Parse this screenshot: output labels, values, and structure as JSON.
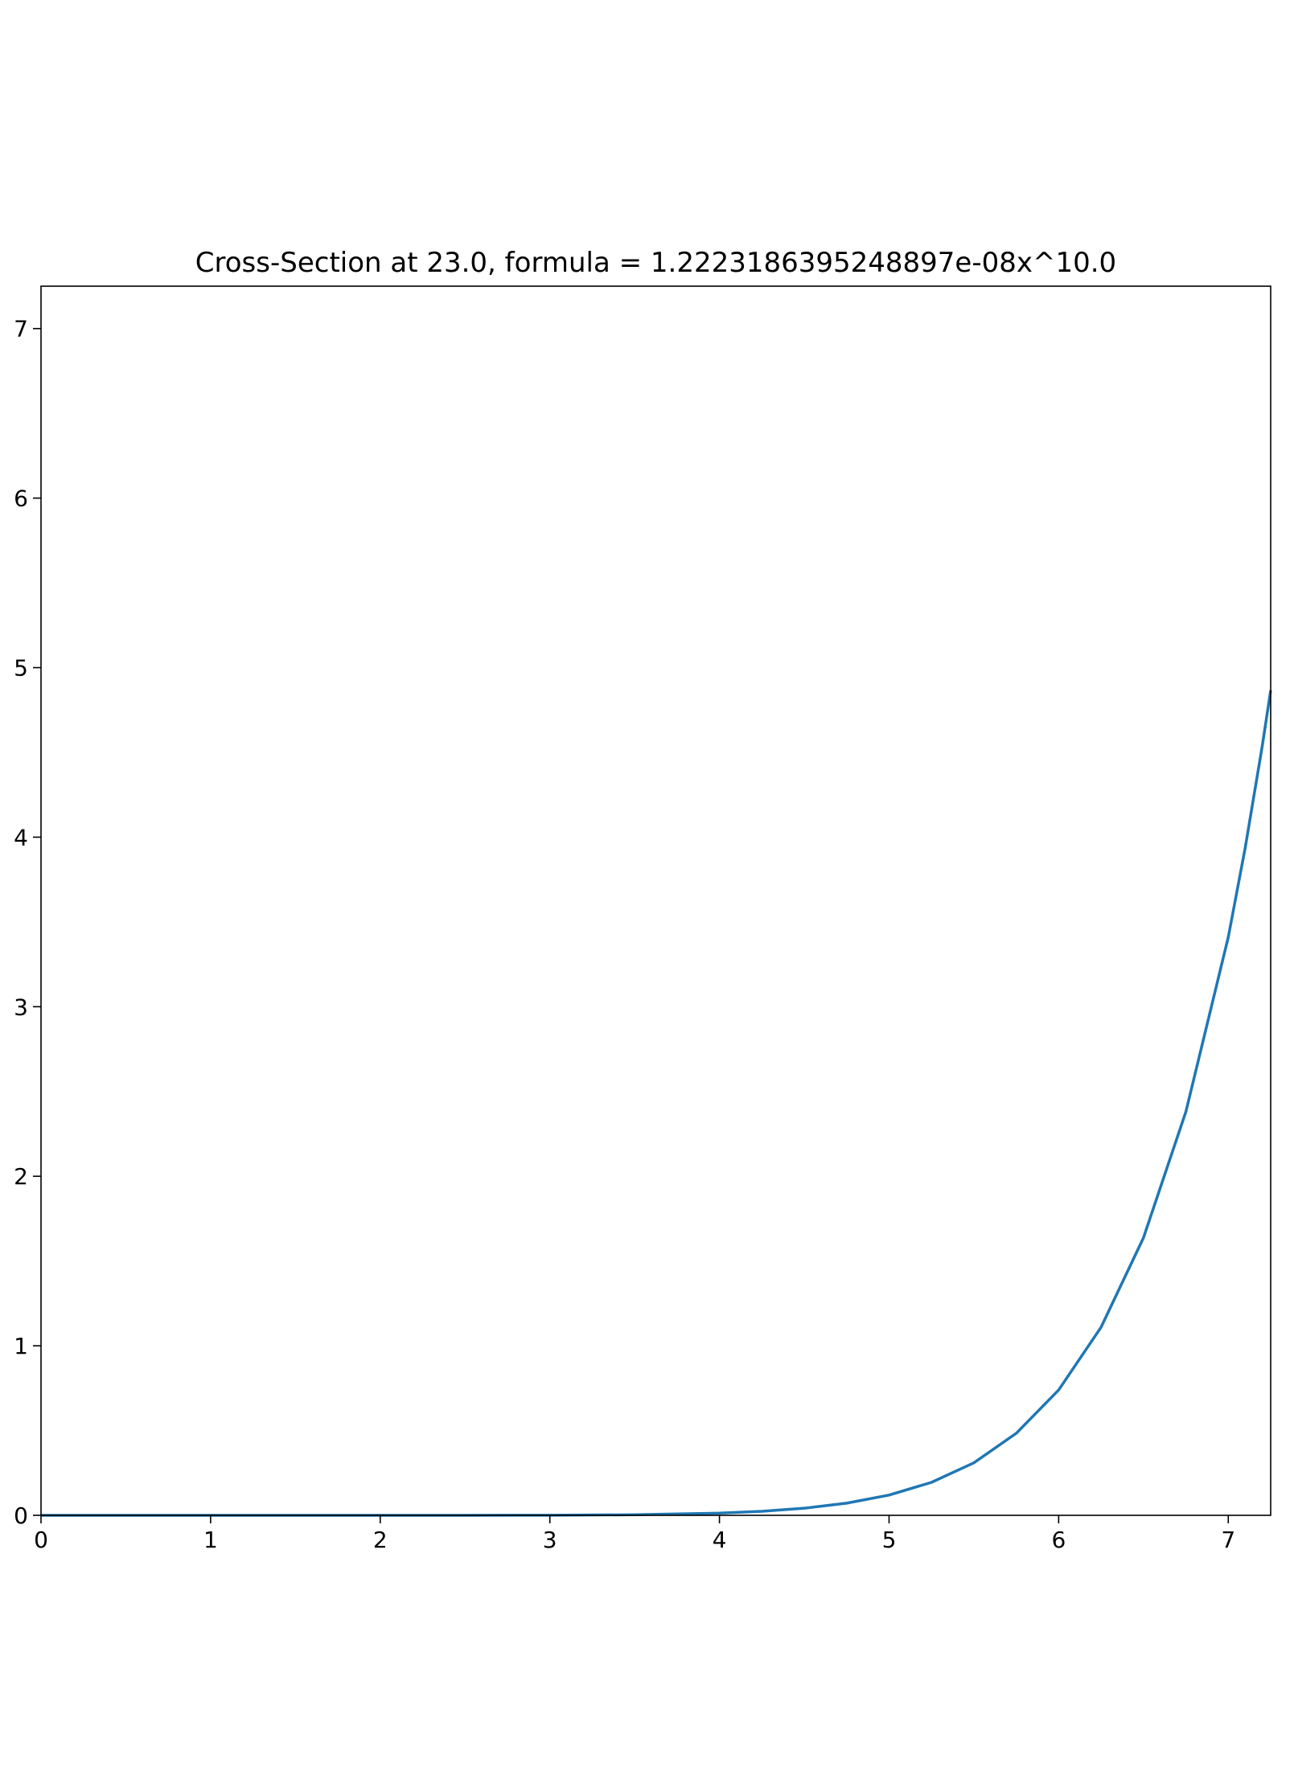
{
  "chart_data": {
    "type": "line",
    "title": "Cross-Section at 23.0, formula = 1.2223186395248897e-08x^10.0",
    "xlabel": "",
    "ylabel": "",
    "xlim": [
      0,
      7.25
    ],
    "ylim": [
      0,
      7.25
    ],
    "x_ticks": [
      0,
      1,
      2,
      3,
      4,
      5,
      6,
      7
    ],
    "y_ticks": [
      0,
      1,
      2,
      3,
      4,
      5,
      6,
      7
    ],
    "grid": false,
    "series": [
      {
        "color": "#1f77b4",
        "x": [
          0,
          0.5,
          1,
          1.5,
          2,
          2.5,
          3,
          3.5,
          4,
          4.25,
          4.5,
          4.75,
          5,
          5.25,
          5.5,
          5.75,
          6,
          6.25,
          6.5,
          6.75,
          7,
          7.1,
          7.2,
          7.25
        ],
        "y": [
          0,
          0,
          0,
          0,
          1.25e-05,
          0.00012,
          0.00072,
          0.0033,
          0.0128,
          0.0236,
          0.0418,
          0.0716,
          0.1194,
          0.1944,
          0.3097,
          0.4837,
          0.7393,
          1.1093,
          1.6373,
          2.3804,
          3.4102,
          3.9383,
          4.5356,
          4.866
        ]
      }
    ]
  }
}
